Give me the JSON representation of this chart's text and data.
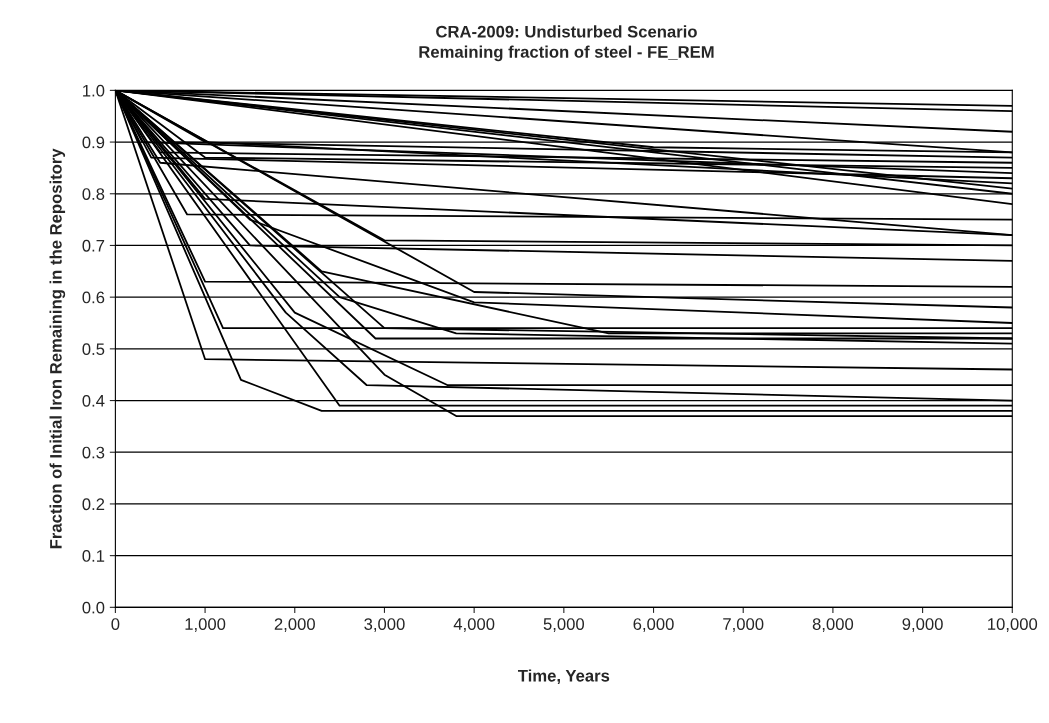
{
  "chart_data": {
    "type": "line",
    "title": "CRA-2009: Undisturbed Scenario",
    "subtitle": "Remaining fraction of steel - FE_REM",
    "xlabel": "Time, Years",
    "ylabel": "Fraction of Initial Iron Remaining in the Repository",
    "xlim": [
      0,
      10000
    ],
    "xticks": [
      0,
      {
        "value": 1000,
        "label": "1,000"
      },
      {
        "value": 2000,
        "label": "2,000"
      },
      {
        "value": 3000,
        "label": "3,000"
      },
      {
        "value": 4000,
        "label": "4,000"
      },
      {
        "value": 5000,
        "label": "5,000"
      },
      {
        "value": 6000,
        "label": "6,000"
      },
      {
        "value": 7000,
        "label": "7,000"
      },
      {
        "value": 8000,
        "label": "8,000"
      },
      {
        "value": 9000,
        "label": "9,000"
      },
      {
        "value": 10000,
        "label": "10,000"
      }
    ],
    "ylim": [
      0,
      1
    ],
    "yticks": [
      {
        "value": 0,
        "label": "0.0"
      },
      {
        "value": 0.1,
        "label": "0.1"
      },
      {
        "value": 0.2,
        "label": "0.2"
      },
      {
        "value": 0.3,
        "label": "0.3"
      },
      {
        "value": 0.4,
        "label": "0.4"
      },
      {
        "value": 0.5,
        "label": "0.5"
      },
      {
        "value": 0.6,
        "label": "0.6"
      },
      {
        "value": 0.7,
        "label": "0.7"
      },
      {
        "value": 0.8,
        "label": "0.8"
      },
      {
        "value": 0.9,
        "label": "0.9"
      },
      {
        "value": 1,
        "label": "1.0"
      }
    ],
    "grid": "y",
    "legend": false,
    "marker": "none",
    "line_style": "solid",
    "series": [
      {
        "color": "#000000",
        "x": [
          0,
          1000,
          10000
        ],
        "values": [
          1.0,
          0.48,
          0.46
        ]
      },
      {
        "color": "#000000",
        "x": [
          0,
          1400,
          2300,
          10000
        ],
        "values": [
          1.0,
          0.44,
          0.38,
          0.38
        ]
      },
      {
        "color": "#000000",
        "x": [
          0,
          2500,
          10000
        ],
        "values": [
          1.0,
          0.39,
          0.39
        ]
      },
      {
        "color": "#000000",
        "x": [
          0,
          3000,
          3800,
          10000
        ],
        "values": [
          1.0,
          0.45,
          0.37,
          0.37
        ]
      },
      {
        "color": "#000000",
        "x": [
          0,
          1200,
          10000
        ],
        "values": [
          1.0,
          0.54,
          0.54
        ]
      },
      {
        "color": "#000000",
        "x": [
          0,
          1900,
          2800,
          10000
        ],
        "values": [
          1.0,
          0.57,
          0.43,
          0.4
        ]
      },
      {
        "color": "#000000",
        "x": [
          0,
          3000,
          10000
        ],
        "values": [
          1.0,
          0.54,
          0.52
        ]
      },
      {
        "color": "#000000",
        "x": [
          0,
          2900,
          10000
        ],
        "values": [
          1.0,
          0.52,
          0.52
        ]
      },
      {
        "color": "#000000",
        "x": [
          0,
          2000,
          3700,
          10000
        ],
        "values": [
          1.0,
          0.57,
          0.43,
          0.43
        ]
      },
      {
        "color": "#000000",
        "x": [
          0,
          1000,
          10000
        ],
        "values": [
          1.0,
          0.63,
          0.62
        ]
      },
      {
        "color": "#000000",
        "x": [
          0,
          2500,
          3800,
          10000
        ],
        "values": [
          1.0,
          0.6,
          0.53,
          0.51
        ]
      },
      {
        "color": "#000000",
        "x": [
          0,
          2300,
          5500,
          10000
        ],
        "values": [
          1.0,
          0.65,
          0.53,
          0.53
        ]
      },
      {
        "color": "#000000",
        "x": [
          0,
          4000,
          10000
        ],
        "values": [
          1.0,
          0.61,
          0.58
        ]
      },
      {
        "color": "#000000",
        "x": [
          0,
          1500,
          4000,
          10000
        ],
        "values": [
          1.0,
          0.75,
          0.59,
          0.55
        ]
      },
      {
        "color": "#000000",
        "x": [
          0,
          1500,
          10000
        ],
        "values": [
          1.0,
          0.7,
          0.67
        ]
      },
      {
        "color": "#000000",
        "x": [
          0,
          3000,
          10000
        ],
        "values": [
          1.0,
          0.71,
          0.7
        ]
      },
      {
        "color": "#000000",
        "x": [
          0,
          1000,
          10000
        ],
        "values": [
          1.0,
          0.79,
          0.72
        ]
      },
      {
        "color": "#000000",
        "x": [
          0,
          500,
          10000
        ],
        "values": [
          1.0,
          0.86,
          0.72
        ]
      },
      {
        "color": "#000000",
        "x": [
          0,
          800,
          10000
        ],
        "values": [
          1.0,
          0.76,
          0.75
        ]
      },
      {
        "color": "#000000",
        "x": [
          0,
          10000
        ],
        "values": [
          1.0,
          0.78
        ]
      },
      {
        "color": "#000000",
        "x": [
          0,
          600,
          10000
        ],
        "values": [
          1.0,
          0.9,
          0.87
        ]
      },
      {
        "color": "#000000",
        "x": [
          0,
          500,
          10000
        ],
        "values": [
          1.0,
          0.88,
          0.86
        ]
      },
      {
        "color": "#000000",
        "x": [
          0,
          1000,
          10000
        ],
        "values": [
          1.0,
          0.87,
          0.85
        ]
      },
      {
        "color": "#000000",
        "x": [
          0,
          300,
          10000
        ],
        "values": [
          1.0,
          0.9,
          0.84
        ]
      },
      {
        "color": "#000000",
        "x": [
          0,
          400,
          10000
        ],
        "values": [
          1.0,
          0.87,
          0.83
        ]
      },
      {
        "color": "#000000",
        "x": [
          0,
          1000,
          10000
        ],
        "values": [
          1.0,
          0.9,
          0.82
        ]
      },
      {
        "color": "#000000",
        "x": [
          0,
          10000
        ],
        "values": [
          1.0,
          0.81
        ]
      },
      {
        "color": "#000000",
        "x": [
          0,
          10000
        ],
        "values": [
          1.0,
          0.8
        ]
      },
      {
        "color": "#000000",
        "x": [
          0,
          10000
        ],
        "values": [
          1.0,
          0.97
        ]
      },
      {
        "color": "#000000",
        "x": [
          0,
          10000
        ],
        "values": [
          1.0,
          0.96
        ]
      },
      {
        "color": "#000000",
        "x": [
          0,
          10000
        ],
        "values": [
          1.0,
          0.92
        ]
      },
      {
        "color": "#000000",
        "x": [
          0,
          10000
        ],
        "values": [
          1.0,
          0.88
        ]
      },
      {
        "color": "#000000",
        "x": [
          0,
          6000,
          10000
        ],
        "values": [
          1.0,
          0.89,
          0.88
        ]
      }
    ]
  }
}
